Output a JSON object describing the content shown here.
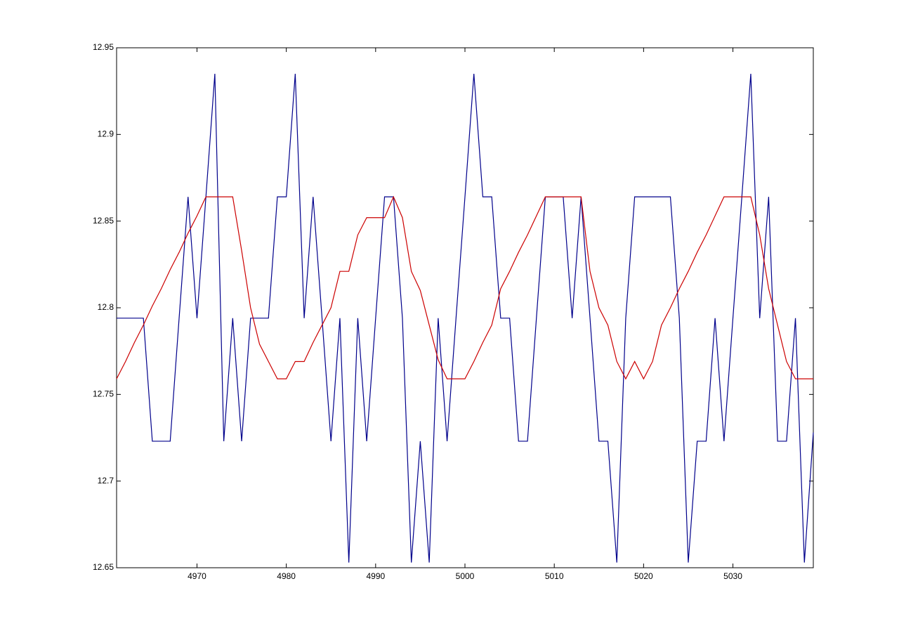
{
  "chart_data": {
    "type": "line",
    "x": [
      4961,
      4962,
      4963,
      4964,
      4965,
      4966,
      4967,
      4968,
      4969,
      4970,
      4971,
      4972,
      4973,
      4974,
      4975,
      4976,
      4977,
      4978,
      4979,
      4980,
      4981,
      4982,
      4983,
      4984,
      4985,
      4986,
      4987,
      4988,
      4989,
      4990,
      4991,
      4992,
      4993,
      4994,
      4995,
      4996,
      4997,
      4998,
      4999,
      5000,
      5001,
      5002,
      5003,
      5004,
      5005,
      5006,
      5007,
      5008,
      5009,
      5010,
      5011,
      5012,
      5013,
      5014,
      5015,
      5016,
      5017,
      5018,
      5019,
      5020,
      5021,
      5022,
      5023,
      5024,
      5025,
      5026,
      5027,
      5028,
      5029,
      5030,
      5031,
      5032,
      5033,
      5034,
      5035,
      5036,
      5037,
      5038,
      5039
    ],
    "series": [
      {
        "color": "#00008b",
        "values": [
          12.794,
          12.794,
          12.794,
          12.794,
          12.723,
          12.723,
          12.723,
          12.794,
          12.864,
          12.794,
          12.864,
          12.935,
          12.723,
          12.794,
          12.723,
          12.794,
          12.794,
          12.794,
          12.864,
          12.864,
          12.935,
          12.794,
          12.864,
          12.794,
          12.723,
          12.794,
          12.653,
          12.794,
          12.723,
          12.794,
          12.864,
          12.864,
          12.794,
          12.653,
          12.723,
          12.653,
          12.794,
          12.723,
          12.794,
          12.864,
          12.935,
          12.864,
          12.864,
          12.794,
          12.794,
          12.723,
          12.723,
          12.794,
          12.864,
          12.864,
          12.864,
          12.794,
          12.864,
          12.794,
          12.723,
          12.723,
          12.653,
          12.794,
          12.864,
          12.864,
          12.864,
          12.864,
          12.864,
          12.794,
          12.653,
          12.723,
          12.723,
          12.794,
          12.723,
          12.794,
          12.864,
          12.935,
          12.794,
          12.864,
          12.723,
          12.723,
          12.794,
          12.653,
          12.728
        ]
      },
      {
        "color": "#cc0000",
        "values": [
          12.759,
          12.769,
          12.78,
          12.79,
          12.801,
          12.811,
          12.822,
          12.832,
          12.843,
          12.853,
          12.864,
          12.864,
          12.864,
          12.864,
          12.833,
          12.8,
          12.779,
          12.769,
          12.759,
          12.759,
          12.769,
          12.769,
          12.78,
          12.79,
          12.8,
          12.821,
          12.821,
          12.842,
          12.852,
          12.852,
          12.852,
          12.864,
          12.852,
          12.821,
          12.81,
          12.79,
          12.77,
          12.759,
          12.759,
          12.759,
          12.769,
          12.78,
          12.79,
          12.811,
          12.821,
          12.832,
          12.842,
          12.853,
          12.864,
          12.864,
          12.864,
          12.864,
          12.864,
          12.821,
          12.8,
          12.79,
          12.769,
          12.759,
          12.769,
          12.759,
          12.769,
          12.79,
          12.8,
          12.811,
          12.821,
          12.832,
          12.842,
          12.853,
          12.864,
          12.864,
          12.864,
          12.864,
          12.842,
          12.811,
          12.79,
          12.769,
          12.759,
          12.759,
          12.759
        ]
      }
    ],
    "xlim": [
      4961,
      5039
    ],
    "ylim": [
      12.65,
      12.95
    ],
    "xticks": [
      4970,
      4980,
      4990,
      5000,
      5010,
      5020,
      5030
    ],
    "yticks": [
      12.65,
      12.7,
      12.75,
      12.8,
      12.85,
      12.9,
      12.95
    ]
  }
}
